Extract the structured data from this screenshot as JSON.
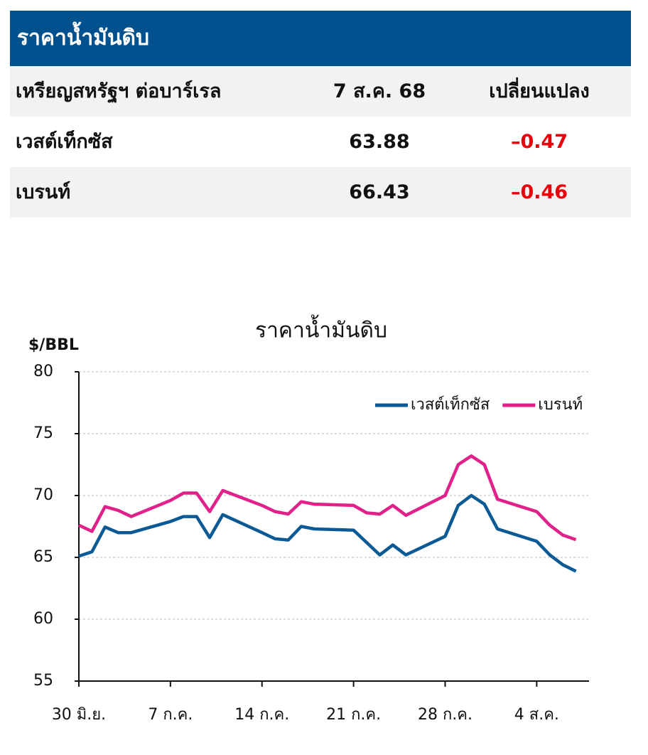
{
  "table": {
    "title": "ราคาน้ำมันดิบ",
    "columns": [
      "เหรียญสหรัฐฯ ต่อบาร์เรล",
      "7 ส.ค. 68",
      "เปลี่ยนแปลง"
    ],
    "rows": [
      [
        "เวสต์เท็กซัส",
        "63.88",
        "–0.47"
      ],
      [
        "เบรนท์",
        "66.43",
        "–0.46"
      ]
    ]
  },
  "chart_data": {
    "type": "line",
    "title": "ราคาน้ำมันดิบ",
    "y_label": "$/BBL",
    "x": [
      0,
      1,
      2,
      3,
      4,
      7,
      8,
      9,
      10,
      11,
      14,
      15,
      16,
      17,
      18,
      21,
      22,
      23,
      24,
      25,
      28,
      29,
      30,
      31,
      32,
      35,
      36,
      37,
      38
    ],
    "series": [
      {
        "name": "เวสต์เท็กซัส",
        "color": "#0b5a96",
        "values": [
          65.1,
          65.45,
          67.45,
          67.0,
          67.0,
          67.9,
          68.3,
          68.3,
          66.6,
          68.45,
          67.0,
          66.5,
          66.4,
          67.5,
          67.3,
          67.2,
          66.2,
          65.2,
          66.0,
          65.2,
          66.7,
          69.2,
          70.0,
          69.3,
          67.3,
          66.3,
          65.2,
          64.4,
          63.88
        ]
      },
      {
        "name": "เบรนท์",
        "color": "#e0218a",
        "values": [
          67.6,
          67.1,
          69.1,
          68.8,
          68.3,
          69.6,
          70.2,
          70.2,
          68.7,
          70.4,
          69.2,
          68.7,
          68.5,
          69.5,
          69.3,
          69.2,
          68.6,
          68.5,
          69.2,
          68.4,
          70.0,
          72.5,
          73.2,
          72.5,
          69.7,
          68.7,
          67.6,
          66.8,
          66.43
        ]
      }
    ],
    "xlim": [
      0,
      39
    ],
    "xticks": [
      {
        "value": 0,
        "label": "30 มิ.ย."
      },
      {
        "value": 7,
        "label": "7 ก.ค."
      },
      {
        "value": 14,
        "label": "14 ก.ค."
      },
      {
        "value": 21,
        "label": "21 ก.ค."
      },
      {
        "value": 28,
        "label": "28 ก.ค."
      },
      {
        "value": 35,
        "label": "4 ส.ค."
      }
    ],
    "ylim": [
      55,
      80
    ],
    "yticks": [
      55,
      60,
      65,
      70,
      75,
      80
    ],
    "grid": true,
    "legend": "top-right"
  }
}
